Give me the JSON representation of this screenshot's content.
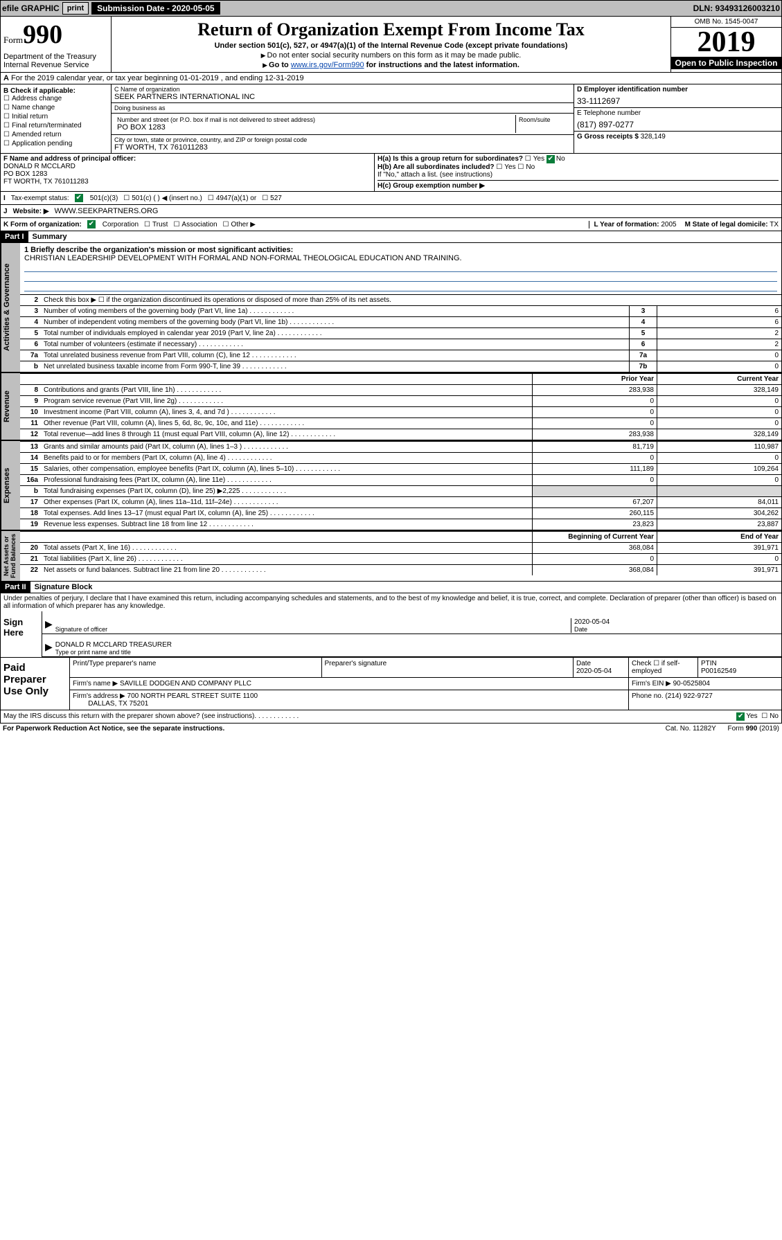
{
  "topbar": {
    "efile": "efile GRAPHIC",
    "print": "print",
    "sub_label": "Submission Date - 2020-05-05",
    "dln": "DLN: 93493126003210"
  },
  "header": {
    "form_prefix": "Form",
    "form_num": "990",
    "dept": "Department of the Treasury\nInternal Revenue Service",
    "title": "Return of Organization Exempt From Income Tax",
    "line1": "Under section 501(c), 527, or 4947(a)(1) of the Internal Revenue Code (except private foundations)",
    "line2": "Do not enter social security numbers on this form as it may be made public.",
    "line3_pre": "Go to ",
    "line3_link": "www.irs.gov/Form990",
    "line3_post": " for instructions and the latest information.",
    "omb": "OMB No. 1545-0047",
    "year": "2019",
    "otp": "Open to Public Inspection"
  },
  "periodA": "For the 2019 calendar year, or tax year beginning 01-01-2019    , and ending 12-31-2019",
  "B": {
    "lbl": "B Check if applicable:",
    "opts": [
      "Address change",
      "Name change",
      "Initial return",
      "Final return/terminated",
      "Amended return",
      "Application pending"
    ]
  },
  "C": {
    "name_lbl": "C Name of organization",
    "name": "SEEK PARTNERS INTERNATIONAL INC",
    "dba_lbl": "Doing business as",
    "dba": "",
    "street_lbl": "Number and street (or P.O. box if mail is not delivered to street address)",
    "street": "PO BOX 1283",
    "room_lbl": "Room/suite",
    "room": "",
    "city_lbl": "City or town, state or province, country, and ZIP or foreign postal code",
    "city": "FT WORTH, TX  761011283"
  },
  "D": {
    "lbl": "D Employer identification number",
    "val": "33-1112697"
  },
  "E": {
    "lbl": "E Telephone number",
    "val": "(817) 897-0277"
  },
  "G": {
    "lbl": "G Gross receipts $",
    "val": "328,149"
  },
  "F": {
    "lbl": "F  Name and address of principal officer:",
    "name": "DONALD R MCCLARD",
    "street": "PO BOX 1283",
    "city": "FT WORTH, TX  761011283"
  },
  "H": {
    "a_lbl": "H(a)  Is this a group return for subordinates?",
    "a_yes": "Yes",
    "a_no": "No",
    "b_lbl": "H(b)  Are all subordinates included?",
    "b_yes": "Yes",
    "b_no": "No",
    "b_note": "If \"No,\" attach a list. (see instructions)",
    "c_lbl": "H(c)  Group exemption number ▶"
  },
  "I": {
    "lbl": "Tax-exempt status:",
    "o1": "501(c)(3)",
    "o2": "501(c) (   ) ◀ (insert no.)",
    "o3": "4947(a)(1) or",
    "o4": "527"
  },
  "J": {
    "lbl": "Website: ▶",
    "val": "WWW.SEEKPARTNERS.ORG"
  },
  "K": {
    "lbl": "K Form of organization:",
    "o1": "Corporation",
    "o2": "Trust",
    "o3": "Association",
    "o4": "Other ▶"
  },
  "L": {
    "lbl": "L Year of formation:",
    "val": "2005"
  },
  "M": {
    "lbl": "M State of legal domicile:",
    "val": "TX"
  },
  "part1": {
    "hdr": "Part I",
    "title": "Summary"
  },
  "p1": {
    "line1_lbl": "1  Briefly describe the organization's mission or most significant activities:",
    "line1_txt": "CHRISTIAN LEADERSHIP DEVELOPMENT WITH FORMAL AND NON-FORMAL THEOLOGICAL EDUCATION AND TRAINING.",
    "line2": "Check this box ▶ ☐  if the organization discontinued its operations or disposed of more than 25% of its net assets.",
    "rows_top": [
      {
        "n": "3",
        "t": "Number of voting members of the governing body (Part VI, line 1a)",
        "c": "3",
        "v": "6"
      },
      {
        "n": "4",
        "t": "Number of independent voting members of the governing body (Part VI, line 1b)",
        "c": "4",
        "v": "6"
      },
      {
        "n": "5",
        "t": "Total number of individuals employed in calendar year 2019 (Part V, line 2a)",
        "c": "5",
        "v": "2"
      },
      {
        "n": "6",
        "t": "Total number of volunteers (estimate if necessary)",
        "c": "6",
        "v": "2"
      },
      {
        "n": "7a",
        "t": "Total unrelated business revenue from Part VIII, column (C), line 12",
        "c": "7a",
        "v": "0"
      },
      {
        "n": "b",
        "t": "Net unrelated business taxable income from Form 990-T, line 39",
        "c": "7b",
        "v": "0"
      }
    ],
    "col_prior": "Prior Year",
    "col_curr": "Current Year",
    "revenue": [
      {
        "n": "8",
        "t": "Contributions and grants (Part VIII, line 1h)",
        "p": "283,938",
        "c": "328,149"
      },
      {
        "n": "9",
        "t": "Program service revenue (Part VIII, line 2g)",
        "p": "0",
        "c": "0"
      },
      {
        "n": "10",
        "t": "Investment income (Part VIII, column (A), lines 3, 4, and 7d )",
        "p": "0",
        "c": "0"
      },
      {
        "n": "11",
        "t": "Other revenue (Part VIII, column (A), lines 5, 6d, 8c, 9c, 10c, and 11e)",
        "p": "0",
        "c": "0"
      },
      {
        "n": "12",
        "t": "Total revenue—add lines 8 through 11 (must equal Part VIII, column (A), line 12)",
        "p": "283,938",
        "c": "328,149"
      }
    ],
    "expenses": [
      {
        "n": "13",
        "t": "Grants and similar amounts paid (Part IX, column (A), lines 1–3 )",
        "p": "81,719",
        "c": "110,987"
      },
      {
        "n": "14",
        "t": "Benefits paid to or for members (Part IX, column (A), line 4)",
        "p": "0",
        "c": "0"
      },
      {
        "n": "15",
        "t": "Salaries, other compensation, employee benefits (Part IX, column (A), lines 5–10)",
        "p": "111,189",
        "c": "109,264"
      },
      {
        "n": "16a",
        "t": "Professional fundraising fees (Part IX, column (A), line 11e)",
        "p": "0",
        "c": "0"
      },
      {
        "n": "b",
        "t": "Total fundraising expenses (Part IX, column (D), line 25) ▶2,225",
        "p": "",
        "c": "",
        "shade": true
      },
      {
        "n": "17",
        "t": "Other expenses (Part IX, column (A), lines 11a–11d, 11f–24e)",
        "p": "67,207",
        "c": "84,011"
      },
      {
        "n": "18",
        "t": "Total expenses. Add lines 13–17 (must equal Part IX, column (A), line 25)",
        "p": "260,115",
        "c": "304,262"
      },
      {
        "n": "19",
        "t": "Revenue less expenses. Subtract line 18 from line 12",
        "p": "23,823",
        "c": "23,887"
      }
    ],
    "col_begin": "Beginning of Current Year",
    "col_end": "End of Year",
    "netassets": [
      {
        "n": "20",
        "t": "Total assets (Part X, line 16)",
        "p": "368,084",
        "c": "391,971"
      },
      {
        "n": "21",
        "t": "Total liabilities (Part X, line 26)",
        "p": "0",
        "c": "0"
      },
      {
        "n": "22",
        "t": "Net assets or fund balances. Subtract line 21 from line 20",
        "p": "368,084",
        "c": "391,971"
      }
    ]
  },
  "sidelabels": {
    "gov": "Activities & Governance",
    "rev": "Revenue",
    "exp": "Expenses",
    "net": "Net Assets or\nFund Balances"
  },
  "part2": {
    "hdr": "Part II",
    "title": "Signature Block"
  },
  "perjury": "Under penalties of perjury, I declare that I have examined this return, including accompanying schedules and statements, and to the best of my knowledge and belief, it is true, correct, and complete. Declaration of preparer (other than officer) is based on all information of which preparer has any knowledge.",
  "sign": {
    "here": "Sign Here",
    "sig_lbl": "Signature of officer",
    "date_lbl": "Date",
    "date": "2020-05-04",
    "typed": "DONALD R MCCLARD  TREASURER",
    "typed_lbl": "Type or print name and title"
  },
  "paid": {
    "lbl": "Paid Preparer Use Only",
    "h1": "Print/Type preparer's name",
    "h2": "Preparer's signature",
    "h3": "Date",
    "date": "2020-05-04",
    "h4": "Check ☐ if self-employed",
    "h5": "PTIN",
    "ptin": "P00162549",
    "firm_lbl": "Firm's name    ▶",
    "firm": "SAVILLE DODGEN AND COMPANY PLLC",
    "ein_lbl": "Firm's EIN ▶",
    "ein": "90-0525804",
    "addr_lbl": "Firm's address ▶",
    "addr1": "700 NORTH PEARL STREET SUITE 1100",
    "addr2": "DALLAS, TX  75201",
    "phone_lbl": "Phone no.",
    "phone": "(214) 922-9727"
  },
  "discuss": "May the IRS discuss this return with the preparer shown above? (see instructions)",
  "discuss_yes": "Yes",
  "discuss_no": "No",
  "footer": {
    "pra": "For Paperwork Reduction Act Notice, see the separate instructions.",
    "cat": "Cat. No. 11282Y",
    "form": "Form 990 (2019)"
  }
}
